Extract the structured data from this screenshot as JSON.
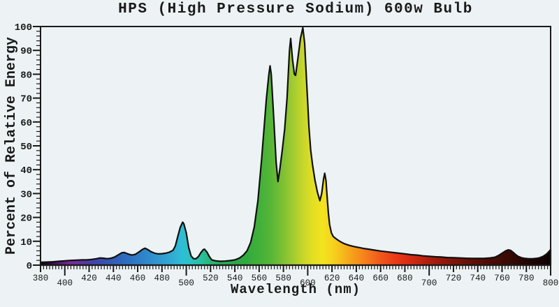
{
  "title": "HPS (High Pressure Sodium) 600w Bulb",
  "chart_data": {
    "type": "area",
    "title": "HPS (High Pressure Sodium) 600w Bulb",
    "xlabel": "Wavelength (nm)",
    "ylabel": "Percent of Relative Energy",
    "xlim": [
      380,
      800
    ],
    "ylim": [
      0,
      100
    ],
    "grid": false,
    "legend": "none",
    "x_tick_labels": [
      380,
      400,
      420,
      440,
      460,
      480,
      500,
      520,
      540,
      560,
      580,
      600,
      620,
      640,
      660,
      680,
      700,
      720,
      740,
      760,
      780,
      800
    ],
    "y_tick_labels": [
      0,
      10,
      20,
      30,
      40,
      50,
      60,
      70,
      80,
      90,
      100
    ],
    "x_minor_step": 2.5,
    "y_minor_step": 2,
    "points": [
      [
        380,
        1.2
      ],
      [
        385,
        1.3
      ],
      [
        390,
        1.4
      ],
      [
        395,
        1.6
      ],
      [
        400,
        1.8
      ],
      [
        405,
        2.0
      ],
      [
        410,
        2.1
      ],
      [
        414,
        2.2
      ],
      [
        418,
        2.2
      ],
      [
        422,
        2.4
      ],
      [
        426,
        2.7
      ],
      [
        429,
        3.0
      ],
      [
        432,
        2.9
      ],
      [
        435,
        2.7
      ],
      [
        438,
        2.9
      ],
      [
        441,
        3.4
      ],
      [
        444,
        4.3
      ],
      [
        447,
        5.2
      ],
      [
        449,
        5.3
      ],
      [
        452,
        4.7
      ],
      [
        455,
        4.2
      ],
      [
        458,
        4.5
      ],
      [
        461,
        5.5
      ],
      [
        464,
        6.6
      ],
      [
        466,
        7.1
      ],
      [
        468,
        6.6
      ],
      [
        471,
        5.6
      ],
      [
        474,
        5.0
      ],
      [
        477,
        4.7
      ],
      [
        480,
        4.8
      ],
      [
        483,
        5.0
      ],
      [
        486,
        5.4
      ],
      [
        489,
        6.2
      ],
      [
        491,
        8.0
      ],
      [
        493,
        12.0
      ],
      [
        495,
        15.8
      ],
      [
        497,
        18.0
      ],
      [
        498,
        17.3
      ],
      [
        500,
        13.5
      ],
      [
        502,
        7.5
      ],
      [
        504,
        3.8
      ],
      [
        506,
        2.7
      ],
      [
        508,
        2.7
      ],
      [
        510,
        3.6
      ],
      [
        512,
        5.2
      ],
      [
        514,
        6.5
      ],
      [
        515,
        6.7
      ],
      [
        517,
        5.5
      ],
      [
        519,
        3.6
      ],
      [
        521,
        2.2
      ],
      [
        524,
        1.8
      ],
      [
        528,
        1.6
      ],
      [
        532,
        1.7
      ],
      [
        536,
        1.9
      ],
      [
        540,
        2.2
      ],
      [
        544,
        3.0
      ],
      [
        547,
        4.2
      ],
      [
        550,
        6.0
      ],
      [
        553,
        9.5
      ],
      [
        556,
        16.0
      ],
      [
        559,
        27.0
      ],
      [
        562,
        44.0
      ],
      [
        564,
        57.0
      ],
      [
        566,
        70.0
      ],
      [
        568,
        80.0
      ],
      [
        569,
        83.5
      ],
      [
        570,
        80.0
      ],
      [
        572,
        62.0
      ],
      [
        574,
        43.0
      ],
      [
        575.5,
        35.0
      ],
      [
        577,
        40.0
      ],
      [
        579,
        48.0
      ],
      [
        581,
        57.0
      ],
      [
        583,
        70.0
      ],
      [
        585,
        90.0
      ],
      [
        586,
        95.0
      ],
      [
        587.5,
        86.0
      ],
      [
        589,
        80.0
      ],
      [
        590,
        79.5
      ],
      [
        592,
        87.0
      ],
      [
        594,
        95.0
      ],
      [
        596,
        99.5
      ],
      [
        597.5,
        93.0
      ],
      [
        599,
        78.0
      ],
      [
        600,
        68.0
      ],
      [
        601,
        58.0
      ],
      [
        602.5,
        48.0
      ],
      [
        604,
        42.0
      ],
      [
        606,
        35.5
      ],
      [
        608,
        30.5
      ],
      [
        610,
        27.0
      ],
      [
        611.5,
        30.0
      ],
      [
        613,
        36.0
      ],
      [
        614,
        38.5
      ],
      [
        615,
        35.5
      ],
      [
        616,
        28.5
      ],
      [
        617,
        22.0
      ],
      [
        618,
        17.0
      ],
      [
        619.5,
        13.5
      ],
      [
        621,
        12.0
      ],
      [
        624,
        10.8
      ],
      [
        627,
        9.8
      ],
      [
        630,
        9.0
      ],
      [
        634,
        8.3
      ],
      [
        638,
        7.8
      ],
      [
        642,
        7.4
      ],
      [
        646,
        7.0
      ],
      [
        650,
        6.7
      ],
      [
        655,
        6.3
      ],
      [
        660,
        5.9
      ],
      [
        665,
        5.6
      ],
      [
        670,
        5.3
      ],
      [
        675,
        5.0
      ],
      [
        680,
        4.7
      ],
      [
        685,
        4.4
      ],
      [
        690,
        4.2
      ],
      [
        695,
        3.9
      ],
      [
        700,
        3.7
      ],
      [
        705,
        3.5
      ],
      [
        710,
        3.4
      ],
      [
        715,
        3.2
      ],
      [
        720,
        3.1
      ],
      [
        725,
        3.0
      ],
      [
        730,
        2.9
      ],
      [
        735,
        2.85
      ],
      [
        740,
        2.8
      ],
      [
        745,
        2.85
      ],
      [
        750,
        3.0
      ],
      [
        754,
        3.3
      ],
      [
        757,
        4.0
      ],
      [
        760,
        5.0
      ],
      [
        763,
        6.0
      ],
      [
        765,
        6.4
      ],
      [
        767,
        6.2
      ],
      [
        769,
        5.4
      ],
      [
        771,
        4.5
      ],
      [
        773,
        3.7
      ],
      [
        776,
        3.1
      ],
      [
        779,
        2.8
      ],
      [
        782,
        2.7
      ],
      [
        785,
        2.7
      ],
      [
        788,
        2.8
      ],
      [
        791,
        3.1
      ],
      [
        794,
        3.7
      ],
      [
        797,
        4.8
      ],
      [
        800,
        6.5
      ]
    ],
    "spectral_gradient": [
      {
        "nm": 380,
        "color": "#0d030f"
      },
      {
        "nm": 388,
        "color": "#2b0b3a"
      },
      {
        "nm": 396,
        "color": "#5c1878"
      },
      {
        "nm": 404,
        "color": "#7b2a92"
      },
      {
        "nm": 412,
        "color": "#64339c"
      },
      {
        "nm": 420,
        "color": "#4b3da4"
      },
      {
        "nm": 430,
        "color": "#3a4dae"
      },
      {
        "nm": 442,
        "color": "#315fb9"
      },
      {
        "nm": 454,
        "color": "#2e72c2"
      },
      {
        "nm": 466,
        "color": "#2f86ca"
      },
      {
        "nm": 478,
        "color": "#3099d0"
      },
      {
        "nm": 488,
        "color": "#30abd4"
      },
      {
        "nm": 496,
        "color": "#2fbdd6"
      },
      {
        "nm": 504,
        "color": "#2bc2c0"
      },
      {
        "nm": 512,
        "color": "#2abfa0"
      },
      {
        "nm": 521,
        "color": "#28b573"
      },
      {
        "nm": 530,
        "color": "#27ad55"
      },
      {
        "nm": 540,
        "color": "#2aa945"
      },
      {
        "nm": 550,
        "color": "#31ab3e"
      },
      {
        "nm": 560,
        "color": "#41b03a"
      },
      {
        "nm": 570,
        "color": "#58b637"
      },
      {
        "nm": 580,
        "color": "#7fc133"
      },
      {
        "nm": 588,
        "color": "#a2cb30"
      },
      {
        "nm": 596,
        "color": "#c6d62a"
      },
      {
        "nm": 604,
        "color": "#e2df23"
      },
      {
        "nm": 612,
        "color": "#f2e31e"
      },
      {
        "nm": 620,
        "color": "#f5d51d"
      },
      {
        "nm": 628,
        "color": "#f6bc1c"
      },
      {
        "nm": 636,
        "color": "#f6a11b"
      },
      {
        "nm": 644,
        "color": "#f68a1b"
      },
      {
        "nm": 652,
        "color": "#f4711c"
      },
      {
        "nm": 660,
        "color": "#f0581b"
      },
      {
        "nm": 668,
        "color": "#ec4418"
      },
      {
        "nm": 676,
        "color": "#e63414"
      },
      {
        "nm": 684,
        "color": "#d62b12"
      },
      {
        "nm": 692,
        "color": "#c42510"
      },
      {
        "nm": 700,
        "color": "#ad1e0d"
      },
      {
        "nm": 710,
        "color": "#97190b"
      },
      {
        "nm": 722,
        "color": "#7c1409"
      },
      {
        "nm": 736,
        "color": "#621007"
      },
      {
        "nm": 750,
        "color": "#4c0c05"
      },
      {
        "nm": 765,
        "color": "#3a0a05"
      },
      {
        "nm": 778,
        "color": "#270504"
      },
      {
        "nm": 790,
        "color": "#190203"
      },
      {
        "nm": 800,
        "color": "#0e0101"
      }
    ],
    "colors": {
      "background": "#edf2f4",
      "axis": "#1a1a1a",
      "curve_outline": "#101010",
      "text": "#1a1a1a"
    }
  }
}
